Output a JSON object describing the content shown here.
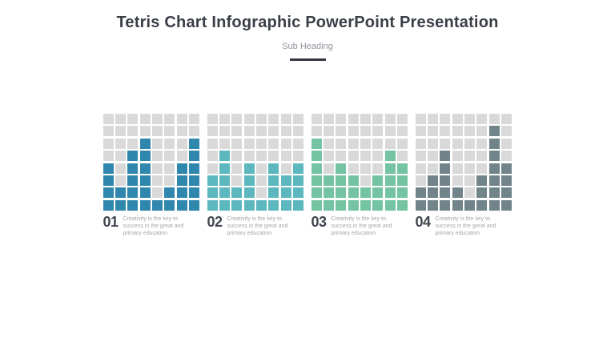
{
  "header": {
    "title": "Tetris Chart Infographic PowerPoint Presentation",
    "subtitle": "Sub Heading"
  },
  "colors": {
    "background": "#ffffff",
    "title_text": "#3a3e47",
    "subtitle_text": "#8f949d",
    "underline": "#33373f",
    "number_text": "#40464f",
    "description_text": "#a6a6a6",
    "empty_cell": "#d9d9d9"
  },
  "chart_data": {
    "type": "heatmap",
    "subtype": "tetris-square-grid-bar-chart",
    "grid_rows": 8,
    "grid_cols": 8,
    "value_range": [
      0,
      8
    ],
    "series": [
      {
        "name": "01",
        "description": "Creativity is the key to success in the great and primary education",
        "color": "#2f87ad",
        "column_heights": [
          4,
          2,
          5,
          6,
          1,
          2,
          4,
          6
        ],
        "pattern": [
          "00000000",
          "00000000",
          "00010001",
          "00110001",
          "10110011",
          "10110011",
          "11110111",
          "11111111"
        ]
      },
      {
        "name": "02",
        "description": "Creativity is the key to success in the great and primary education",
        "color": "#5cb8be",
        "column_heights": [
          3,
          5,
          2,
          4,
          1,
          4,
          3,
          4
        ],
        "pattern": [
          "00000000",
          "00000000",
          "00000000",
          "01000000",
          "01010101",
          "11010111",
          "11110111",
          "11111111"
        ]
      },
      {
        "name": "03",
        "description": "Creativity is the key to success in the great and primary education",
        "color": "#74c3a2",
        "column_heights": [
          6,
          3,
          4,
          3,
          2,
          3,
          5,
          4
        ],
        "pattern": [
          "00000000",
          "00000000",
          "10000000",
          "10000010",
          "10100011",
          "11110111",
          "11111111",
          "11111111"
        ]
      },
      {
        "name": "04",
        "description": "Creativity is the key to success in the great and primary education",
        "color": "#70848a",
        "column_heights": [
          2,
          3,
          5,
          2,
          1,
          3,
          7,
          4
        ],
        "pattern": [
          "00000000",
          "00000010",
          "00000010",
          "00100010",
          "00100011",
          "01100111",
          "11110111",
          "11111111"
        ]
      }
    ]
  }
}
